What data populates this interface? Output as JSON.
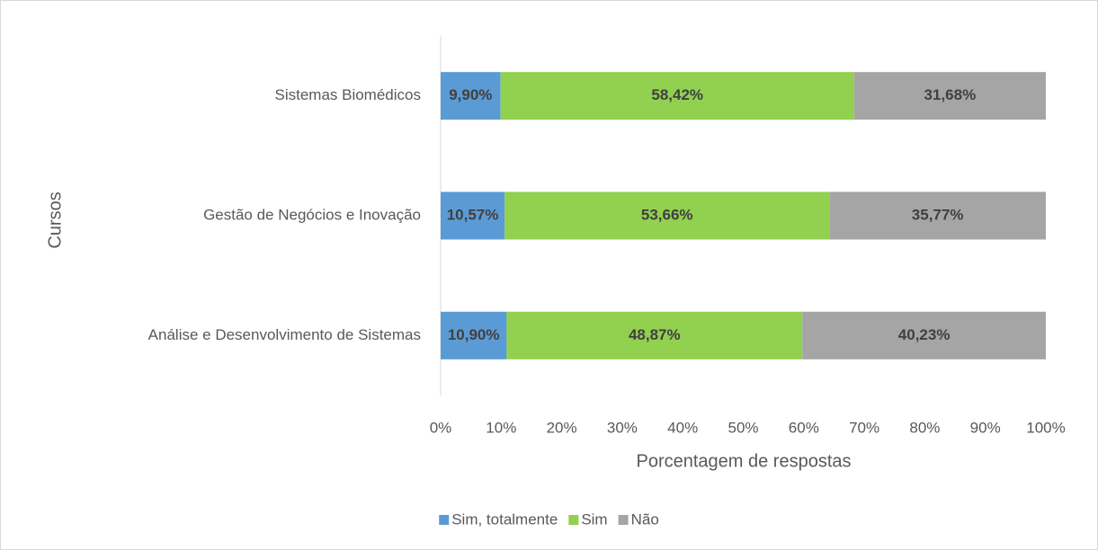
{
  "chart_data": {
    "type": "stacked-bar-horizontal",
    "categories": [
      "Sistemas Biomédicos",
      "Gestão de Negócios e Inovação",
      "Análise e Desenvolvimento de Sistemas"
    ],
    "series": [
      {
        "name": "Sim, totalmente",
        "color": "#5b9bd5",
        "values": [
          9.9,
          10.57,
          10.9
        ],
        "value_labels": [
          "9,90%",
          "10,57%",
          "10,90%"
        ]
      },
      {
        "name": "Sim",
        "color": "#92d050",
        "values": [
          58.42,
          53.66,
          48.87
        ],
        "value_labels": [
          "58,42%",
          "53,66%",
          "48,87%"
        ]
      },
      {
        "name": "Não",
        "color": "#a5a5a5",
        "values": [
          31.68,
          35.77,
          40.23
        ],
        "value_labels": [
          "31,68%",
          "35,77%",
          "40,23%"
        ]
      }
    ],
    "xlim": [
      0,
      100
    ],
    "xticks": [
      {
        "value": 0,
        "label": "0%"
      },
      {
        "value": 10,
        "label": "10%"
      },
      {
        "value": 20,
        "label": "20%"
      },
      {
        "value": 30,
        "label": "30%"
      },
      {
        "value": 40,
        "label": "40%"
      },
      {
        "value": 50,
        "label": "50%"
      },
      {
        "value": 60,
        "label": "60%"
      },
      {
        "value": 70,
        "label": "70%"
      },
      {
        "value": 80,
        "label": "80%"
      },
      {
        "value": 90,
        "label": "90%"
      },
      {
        "value": 100,
        "label": "100%"
      }
    ],
    "xlabel": "Porcentagem de respostas",
    "ylabel": "Cursos",
    "legend": "bottom"
  }
}
